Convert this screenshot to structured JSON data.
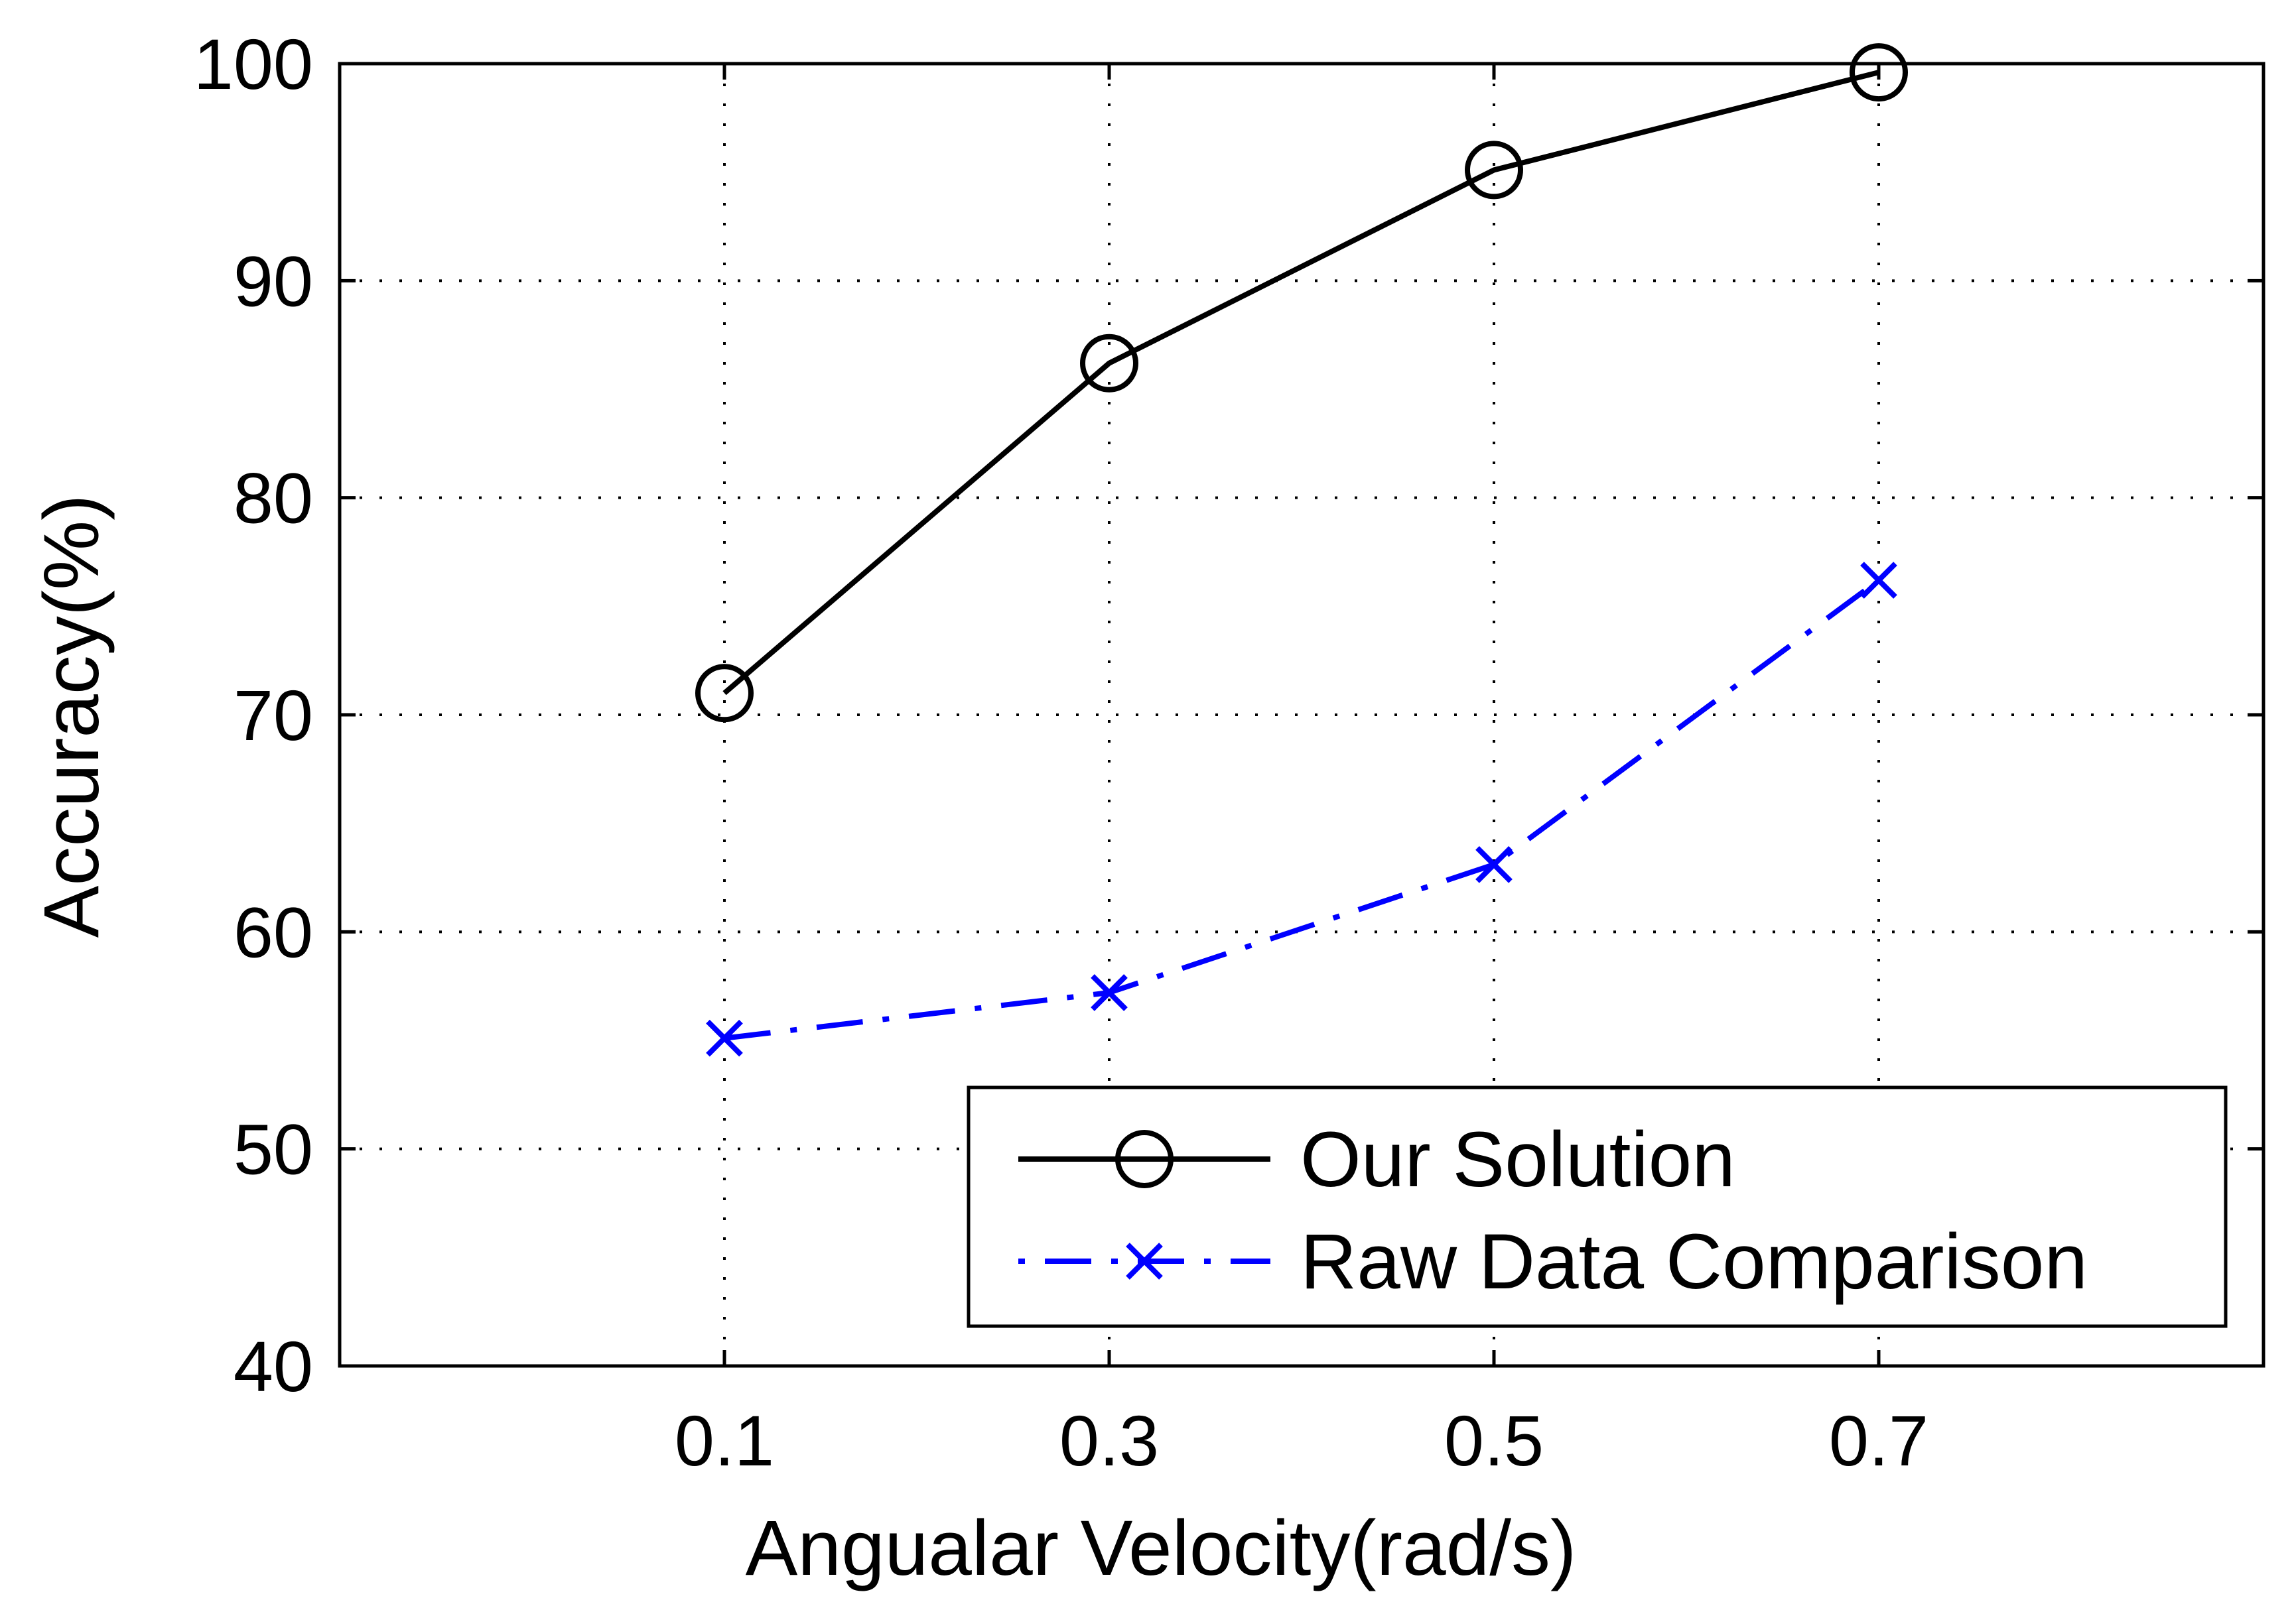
{
  "chart_data": {
    "type": "line",
    "title": "",
    "xlabel": "Angualar Velocity(rad/s)",
    "ylabel": "Accuracy(%)",
    "x": [
      0.1,
      0.3,
      0.5,
      0.7
    ],
    "xlim": [
      -0.1,
      0.9
    ],
    "ylim": [
      40,
      100
    ],
    "xticks": [
      "0.1",
      "0.3",
      "0.5",
      "0.7"
    ],
    "yticks": [
      "40",
      "50",
      "60",
      "70",
      "80",
      "90",
      "100"
    ],
    "grid": true,
    "legend_position": "bottom-right",
    "series": [
      {
        "name": "Our Solution",
        "values": [
          71,
          86.2,
          95.1,
          99.6
        ],
        "color": "#000000",
        "line_style": "solid",
        "marker": "circle"
      },
      {
        "name": "Raw Data Comparison",
        "values": [
          55.1,
          57.2,
          63.1,
          76.2
        ],
        "color": "#0000ff",
        "line_style": "dash-dot",
        "marker": "x"
      }
    ]
  }
}
